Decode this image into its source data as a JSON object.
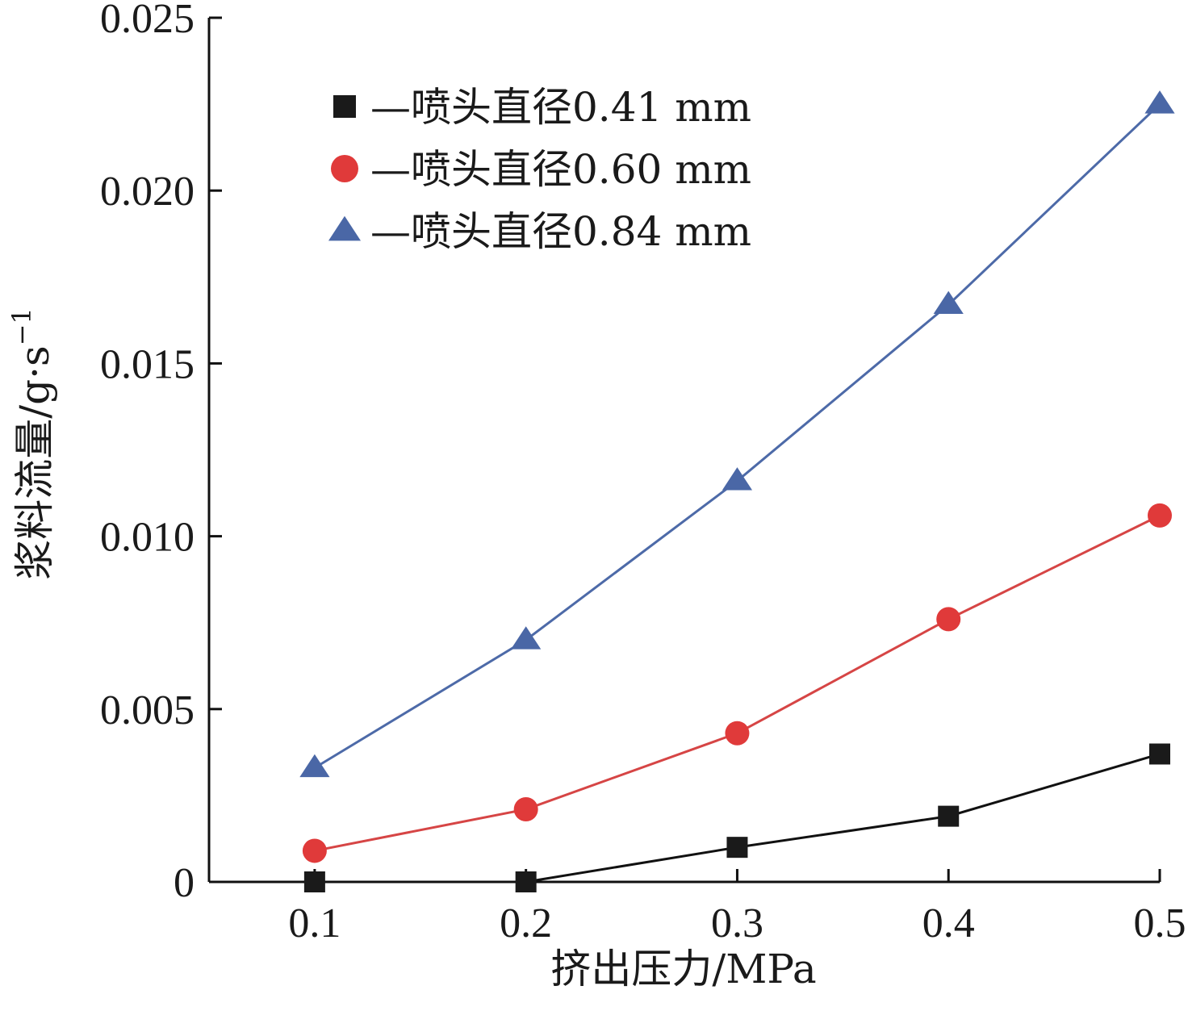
{
  "chart_data": {
    "type": "line",
    "title": "",
    "xlabel": "挤出压力/MPa",
    "ylabel": "浆料流量/g·s",
    "ylabel_superscript": "−1",
    "x": [
      0.1,
      0.2,
      0.3,
      0.4,
      0.5
    ],
    "xticks": [
      "0.1",
      "0.2",
      "0.3",
      "0.4",
      "0.5"
    ],
    "yticks": [
      "0",
      "0.005",
      "0.010",
      "0.015",
      "0.020",
      "0.025"
    ],
    "ytick_values": [
      0,
      0.005,
      0.01,
      0.015,
      0.02,
      0.025
    ],
    "ylim": [
      0,
      0.025
    ],
    "xlim": [
      0.05,
      0.5
    ],
    "grid": false,
    "legend_position": "top-left",
    "series": [
      {
        "name": "—喷头直径0.41 mm",
        "marker": "square",
        "color": "#1a1a1a",
        "line_color": "#111111",
        "values": [
          0.0,
          0.0,
          0.001,
          0.0019,
          0.0037
        ]
      },
      {
        "name": "—喷头直径0.60 mm",
        "marker": "circle",
        "color": "#e03a3a",
        "line_color": "#d64545",
        "values": [
          0.0009,
          0.0021,
          0.0043,
          0.0076,
          0.0106
        ]
      },
      {
        "name": "—喷头直径0.84 mm",
        "marker": "triangle",
        "color": "#4a67a6",
        "line_color": "#4d6aa8",
        "values": [
          0.0033,
          0.007,
          0.0116,
          0.0167,
          0.0225
        ]
      }
    ]
  }
}
